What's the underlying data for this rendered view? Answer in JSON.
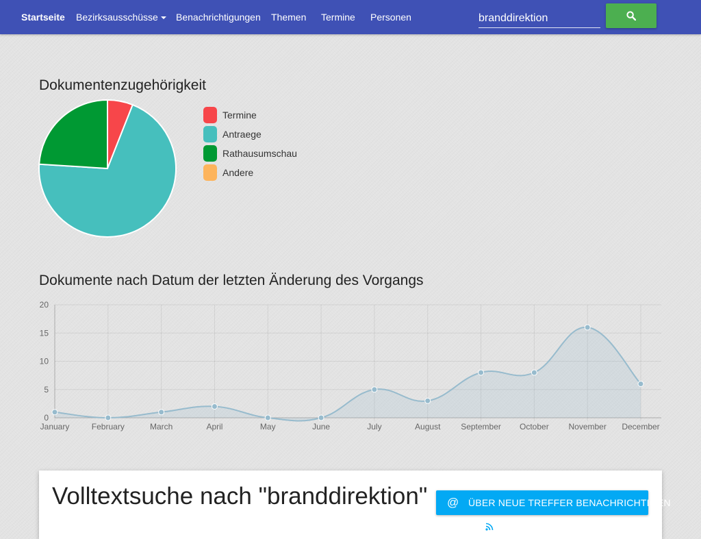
{
  "navbar": {
    "items": [
      {
        "label": "Startseite",
        "active": true
      },
      {
        "label": "Bezirksausschüsse",
        "dropdown": true
      },
      {
        "label": "Benachrichtigungen"
      },
      {
        "label": "Themen"
      },
      {
        "label": "Termine"
      },
      {
        "label": "Personen"
      }
    ],
    "search_value": "branddirektion",
    "search_icon": "search-icon"
  },
  "pie_section": {
    "title": "Dokumentenzugehörigkeit"
  },
  "line_section": {
    "title": "Dokumente nach Datum der letzten Änderung des Vorgangs"
  },
  "chart_data": [
    {
      "type": "pie",
      "title": "Dokumentenzugehörigkeit",
      "labels": [
        "Termine",
        "Antraege",
        "Rathausumschau",
        "Andere"
      ],
      "values": [
        6,
        70,
        24,
        0
      ],
      "colors": [
        "#f7464a",
        "#46bfbd",
        "#009933",
        "#fdb45c"
      ],
      "legend": "right"
    },
    {
      "type": "area",
      "title": "Dokumente nach Datum der letzten Änderung des Vorgangs",
      "categories": [
        "January",
        "February",
        "March",
        "April",
        "May",
        "June",
        "July",
        "August",
        "September",
        "October",
        "November",
        "December"
      ],
      "values": [
        1,
        0,
        1,
        2,
        0,
        0,
        5,
        3,
        8,
        8,
        16,
        6
      ],
      "ylim": [
        0,
        20
      ],
      "yticks": [
        0,
        5,
        10,
        15,
        20
      ],
      "grid": true,
      "line_color": "#97bbcd",
      "fill_color": "rgba(151,187,205,0.2)"
    }
  ],
  "result": {
    "title": "Volltextsuche nach \"branddirektion\"",
    "notify_label": "ÜBER NEUE TREFFER BENACHRICHTIGEN",
    "notify_icon": "at-sign-icon",
    "rss_icon": "rss-icon"
  }
}
